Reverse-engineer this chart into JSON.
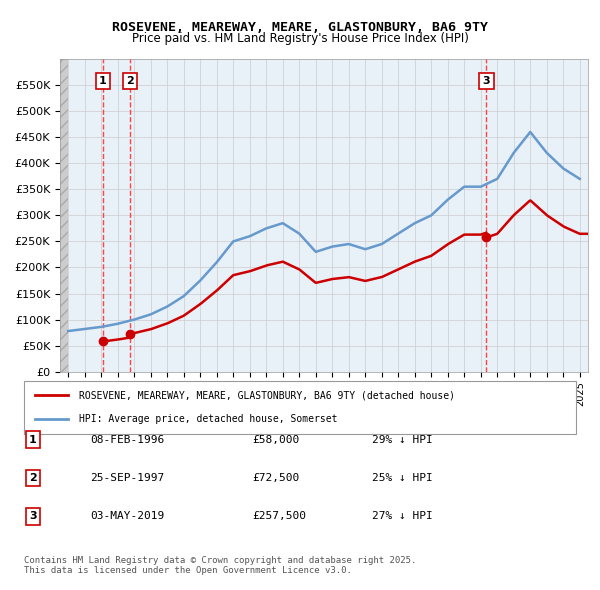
{
  "title": "ROSEVENE, MEAREWAY, MEARE, GLASTONBURY, BA6 9TY",
  "subtitle": "Price paid vs. HM Land Registry's House Price Index (HPI)",
  "legend_line1": "ROSEVENE, MEAREWAY, MEARE, GLASTONBURY, BA6 9TY (detached house)",
  "legend_line2": "HPI: Average price, detached house, Somerset",
  "footer": "Contains HM Land Registry data © Crown copyright and database right 2025.\nThis data is licensed under the Open Government Licence v3.0.",
  "sale_points": [
    {
      "label": "1",
      "date": "08-FEB-1996",
      "price": 58000,
      "year": 1996.1
    },
    {
      "label": "2",
      "date": "25-SEP-1997",
      "price": 72500,
      "year": 1997.73
    },
    {
      "label": "3",
      "date": "03-MAY-2019",
      "price": 257500,
      "year": 2019.34
    }
  ],
  "table_rows": [
    {
      "num": "1",
      "date": "08-FEB-1996",
      "price": "£58,000",
      "hpi": "29% ↓ HPI"
    },
    {
      "num": "2",
      "date": "25-SEP-1997",
      "price": "£72,500",
      "hpi": "25% ↓ HPI"
    },
    {
      "num": "3",
      "date": "03-MAY-2019",
      "price": "£257,500",
      "hpi": "27% ↓ HPI"
    }
  ],
  "ylim": [
    0,
    600000
  ],
  "yticks": [
    0,
    50000,
    100000,
    150000,
    200000,
    250000,
    300000,
    350000,
    400000,
    450000,
    500000,
    550000
  ],
  "xlim_start": 1993.5,
  "xlim_end": 2025.5,
  "hpi_color": "#6699cc",
  "sale_color": "#cc0000",
  "hatch_color": "#bbbbbb",
  "bg_plot": "#e8f0f8",
  "bg_hatch": "#d8d8d8",
  "grid_color": "#cccccc",
  "dashed_line_color": "#ff4444",
  "hpi_years": [
    1994,
    1995,
    1996,
    1997,
    1998,
    1999,
    2000,
    2001,
    2002,
    2003,
    2004,
    2005,
    2006,
    2007,
    2008,
    2009,
    2010,
    2011,
    2012,
    2013,
    2014,
    2015,
    2016,
    2017,
    2018,
    2019,
    2020,
    2021,
    2022,
    2023,
    2024,
    2025
  ],
  "hpi_values": [
    78000,
    82000,
    86000,
    92000,
    100000,
    110000,
    125000,
    145000,
    175000,
    210000,
    250000,
    260000,
    275000,
    285000,
    265000,
    230000,
    240000,
    245000,
    235000,
    245000,
    265000,
    285000,
    300000,
    330000,
    355000,
    355000,
    370000,
    420000,
    460000,
    420000,
    390000,
    370000
  ],
  "sale_hpi_values": [
    78000,
    92000,
    355000
  ]
}
